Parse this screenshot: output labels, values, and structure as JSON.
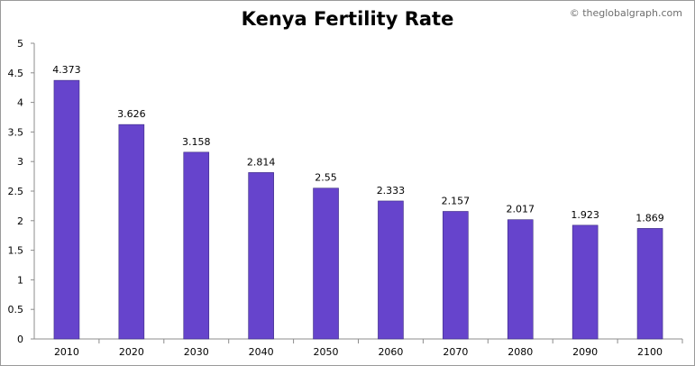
{
  "watermark": "© theglobalgraph.com",
  "chart_data": {
    "type": "bar",
    "title": "Kenya Fertility Rate",
    "xlabel": "",
    "ylabel": "",
    "categories": [
      "2010",
      "2020",
      "2030",
      "2040",
      "2050",
      "2060",
      "2070",
      "2080",
      "2090",
      "2100"
    ],
    "values": [
      4.373,
      3.626,
      3.158,
      2.814,
      2.55,
      2.333,
      2.157,
      2.017,
      1.923,
      1.869
    ],
    "value_labels": [
      "4.373",
      "3.626",
      "3.158",
      "2.814",
      "2.55",
      "2.333",
      "2.157",
      "2.017",
      "1.923",
      "1.869"
    ],
    "ylim": [
      0,
      5
    ],
    "yticks": [
      "0",
      "0.5",
      "1",
      "1.5",
      "2",
      "2.5",
      "3",
      "3.5",
      "4",
      "4.5",
      "5"
    ],
    "grid": false,
    "legend": "none",
    "bar_color": "#6644cc"
  }
}
